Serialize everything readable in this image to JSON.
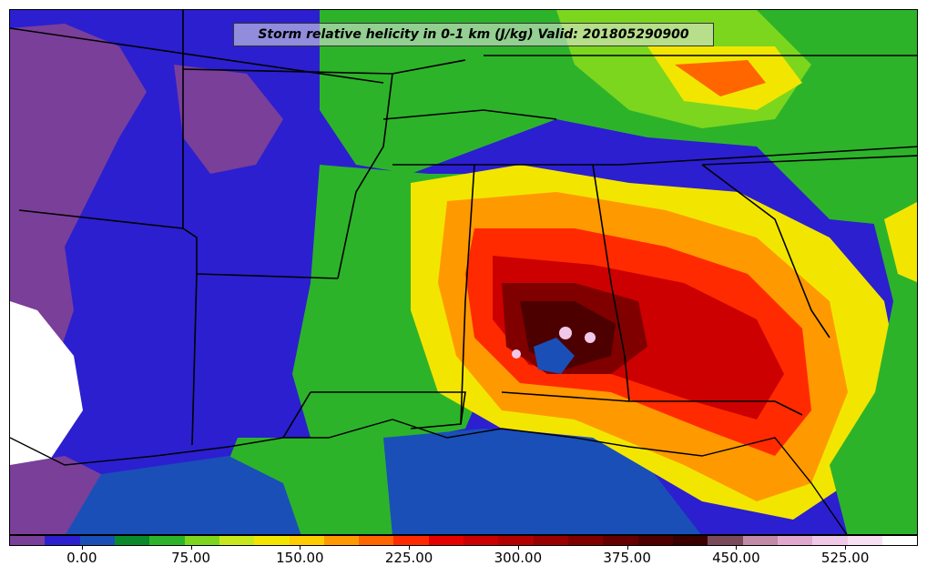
{
  "title": "Storm relative helicity in 0-1 km (J/kg) Valid: 201805290900",
  "colorbar": {
    "colors": [
      "#7a3f99",
      "#2b1fd0",
      "#1a4fb8",
      "#0a8a2a",
      "#2db32a",
      "#7cd61e",
      "#c8e81e",
      "#f2e600",
      "#ffcc00",
      "#ff9900",
      "#ff6600",
      "#ff2a00",
      "#e60000",
      "#cc0000",
      "#b30000",
      "#990000",
      "#800000",
      "#660000",
      "#4d0000",
      "#3a0000",
      "#7a4a5a",
      "#c08aa8",
      "#e0a8d0",
      "#f0c8e8",
      "#f8e0f4",
      "#ffffff"
    ],
    "labels": [
      "0.00",
      "75.00",
      "150.00",
      "225.00",
      "300.00",
      "375.00",
      "450.00",
      "525.00"
    ],
    "label_positions_frac": [
      0.08,
      0.2,
      0.32,
      0.44,
      0.56,
      0.68,
      0.8,
      0.92
    ]
  },
  "palette": {
    "purple": "#7a3f99",
    "blue": "#2b1fd0",
    "green": "#2db32a",
    "lime": "#7cd61e",
    "yellow": "#f2e600",
    "orange": "#ff9900",
    "red": "#e60000",
    "darkred": "#800000",
    "maroon": "#4d0000",
    "pink": "#f0c8e8",
    "white": "#ffffff"
  }
}
